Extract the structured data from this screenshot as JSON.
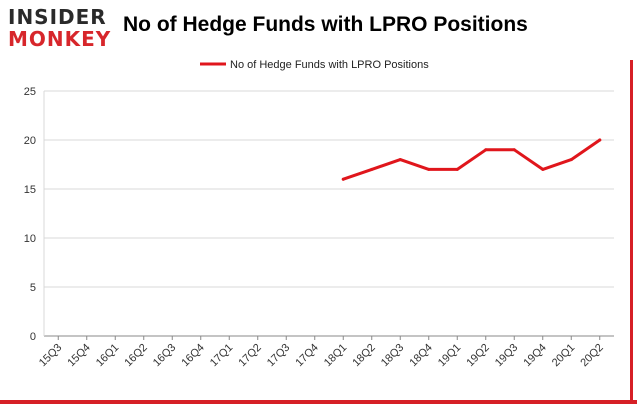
{
  "logo": {
    "top_text": "INSIDER",
    "bottom_text": "MONKEY"
  },
  "chart_data": {
    "type": "line",
    "title": "No of Hedge Funds with LPRO Positions",
    "categories": [
      "15Q3",
      "15Q4",
      "16Q1",
      "16Q2",
      "16Q3",
      "16Q4",
      "17Q1",
      "17Q2",
      "17Q3",
      "17Q4",
      "18Q1",
      "18Q2",
      "18Q3",
      "18Q4",
      "19Q1",
      "19Q2",
      "19Q3",
      "19Q4",
      "20Q1",
      "20Q2"
    ],
    "series": [
      {
        "name": "No of Hedge Funds with LPRO Positions",
        "values": [
          null,
          null,
          null,
          null,
          null,
          null,
          null,
          null,
          null,
          null,
          16,
          17,
          18,
          17,
          17,
          19,
          19,
          17,
          18,
          20
        ],
        "color": "#e0161c"
      }
    ],
    "ylim": [
      0,
      25
    ],
    "yticks": [
      0,
      5,
      10,
      15,
      20,
      25
    ],
    "grid": true,
    "legend": "top-center"
  }
}
